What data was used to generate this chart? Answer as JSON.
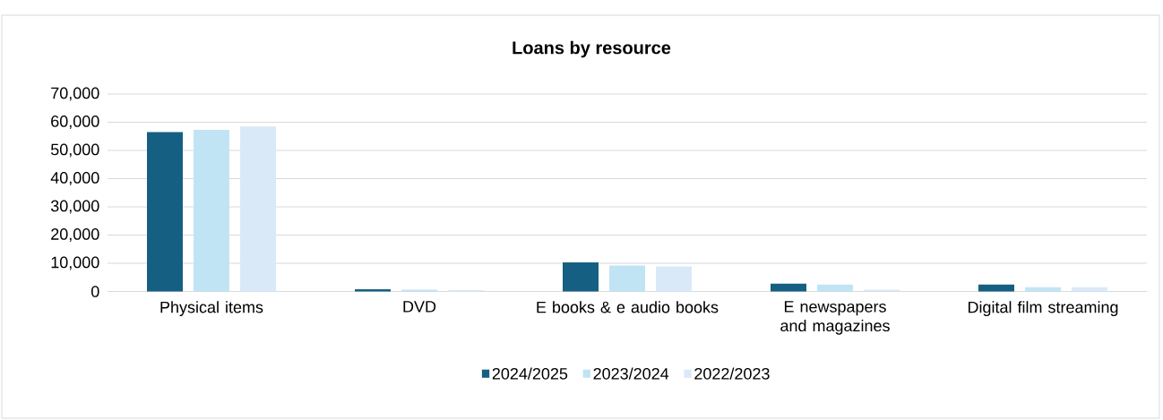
{
  "chart_data": {
    "type": "bar",
    "title": "Loans by resource",
    "categories": [
      "Physical items",
      "DVD",
      "E books & e audio books",
      "E newspapers and magazines",
      "Digital film streaming"
    ],
    "series": [
      {
        "name": "2024/2025",
        "color": "#156082",
        "values": [
          56500,
          800,
          10300,
          2800,
          2500
        ]
      },
      {
        "name": "2023/2024",
        "color": "#c1e4f5",
        "values": [
          57300,
          600,
          9200,
          2500,
          1500
        ]
      },
      {
        "name": "2022/2023",
        "color": "#dae9f8",
        "values": [
          58500,
          500,
          8900,
          600,
          1500
        ]
      }
    ],
    "ylim": [
      0,
      70000
    ],
    "yticks": [
      {
        "value": 0,
        "label": "0"
      },
      {
        "value": 10000,
        "label": "10,000"
      },
      {
        "value": 20000,
        "label": "20,000"
      },
      {
        "value": 30000,
        "label": "30,000"
      },
      {
        "value": 40000,
        "label": "40,000"
      },
      {
        "value": 50000,
        "label": "50,000"
      },
      {
        "value": 60000,
        "label": "60,000"
      },
      {
        "value": 70000,
        "label": "70,000"
      }
    ],
    "grid": "y",
    "legend": "bottom"
  }
}
